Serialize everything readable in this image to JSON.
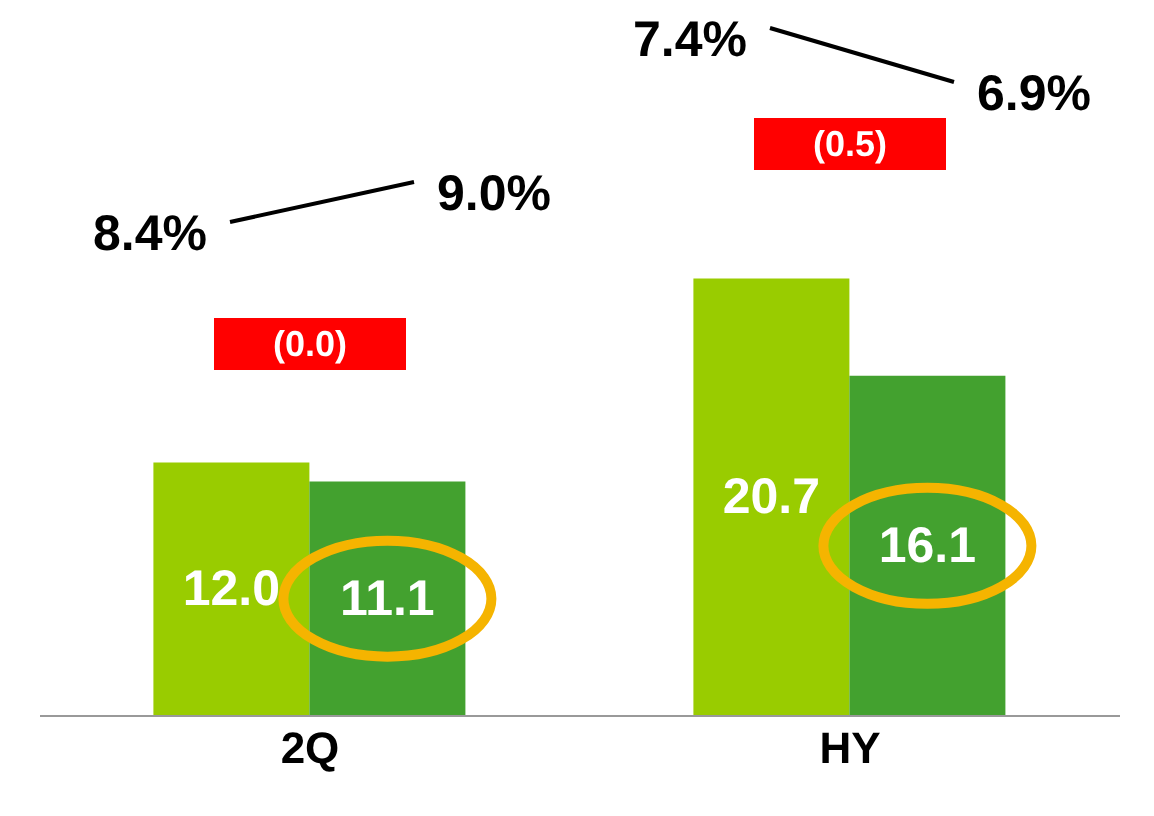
{
  "chart_data": {
    "type": "bar",
    "categories": [
      "2Q",
      "HY"
    ],
    "series": [
      {
        "color": "#99cc00",
        "values": [
          12.0,
          20.7
        ],
        "value_labels": [
          "12.0",
          "20.7"
        ]
      },
      {
        "color": "#43a12f",
        "values": [
          11.1,
          16.1
        ],
        "value_labels": [
          "11.1",
          "16.1"
        ]
      }
    ],
    "tick_labels": "x",
    "grid": false,
    "legend": false,
    "annotations": [
      "8.4%",
      "9.0%",
      "(0.0)",
      "7.4%",
      "6.9%",
      "(0.5)"
    ]
  }
}
